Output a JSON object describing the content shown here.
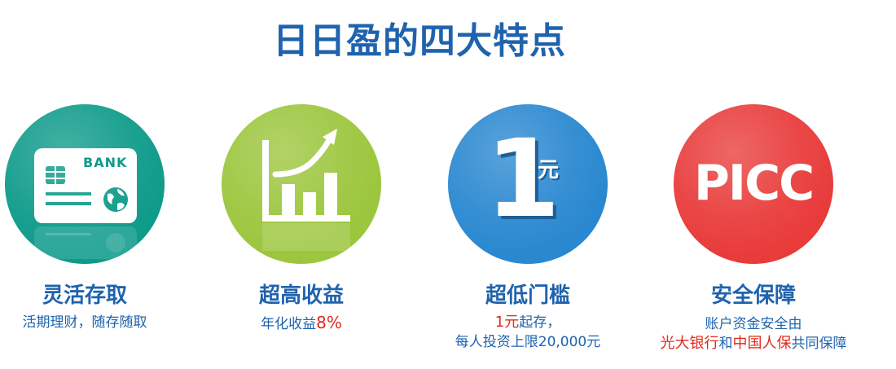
{
  "title": "日日盈的四大特点",
  "features": [
    {
      "title": "灵活存取",
      "icon": "bank-card-icon",
      "card_text": "BANK",
      "desc": "活期理财，随存随取",
      "color": "#0f9b8a"
    },
    {
      "title": "超高收益",
      "icon": "rising-chart-icon",
      "desc_prefix": "年化收益",
      "desc_highlight": "8%",
      "color": "#9cc63d"
    },
    {
      "title": "超低门槛",
      "icon": "one-yuan-icon",
      "big_number": "1",
      "unit": "元",
      "desc_line1_highlight": "1元",
      "desc_line1_rest": "起存，",
      "desc_line2": "每人投资上限20,000元",
      "color": "#2a88d0"
    },
    {
      "title": "安全保障",
      "icon": "picc-logo-icon",
      "logo_text": "PICC",
      "desc_line1": "账户资金安全由",
      "desc_line2_parts": [
        "光大银行",
        "和",
        "中国人保",
        "共同保障"
      ],
      "color": "#e83c3b"
    }
  ]
}
